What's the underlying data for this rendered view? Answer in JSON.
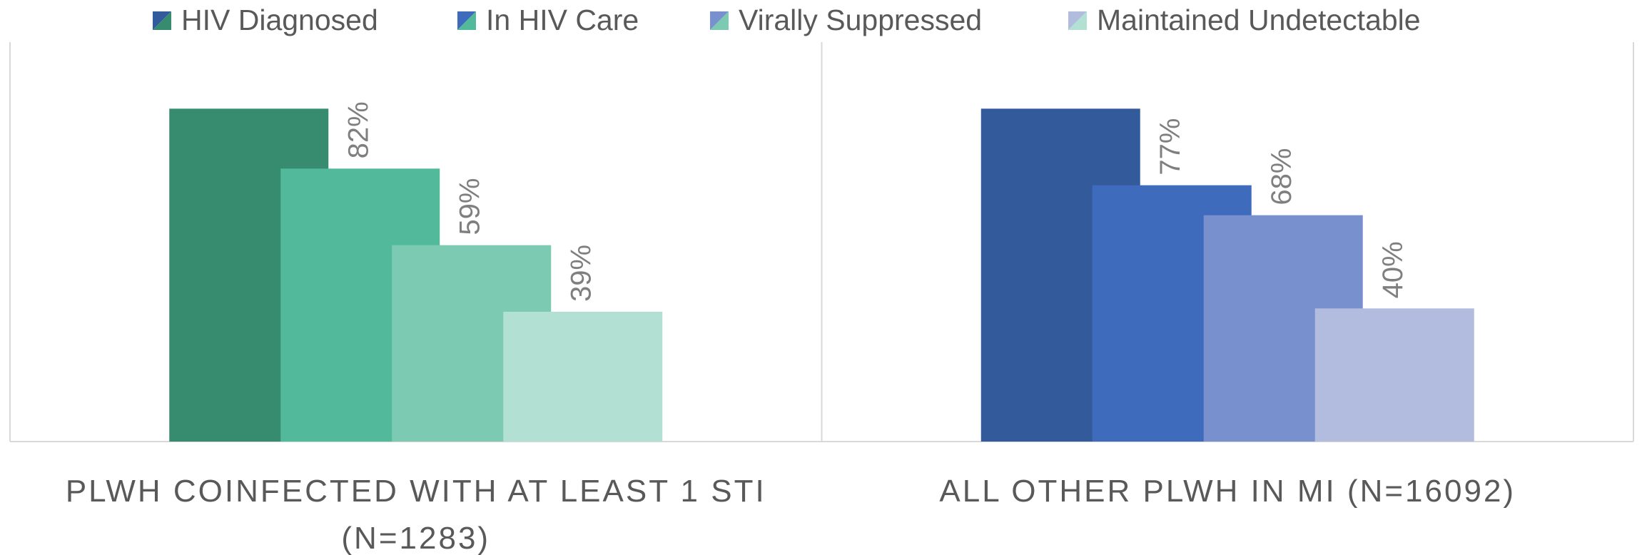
{
  "chart_data": {
    "type": "bar",
    "categories": [
      "PLWH COINFECTED WITH AT LEAST 1 STI (N=1283)",
      "ALL OTHER PLWH IN MI (N=16092)"
    ],
    "series": [
      {
        "name": "HIV Diagnosed",
        "colors": [
          "#378b6f",
          "#335a9b"
        ],
        "values": [
          100,
          100
        ]
      },
      {
        "name": "In HIV Care",
        "colors": [
          "#52b99b",
          "#3e6bbb"
        ],
        "values": [
          82,
          77
        ],
        "value_labels": [
          "82%",
          "77%"
        ]
      },
      {
        "name": "Virally Suppressed",
        "colors": [
          "#7ccab2",
          "#7990cf"
        ],
        "values": [
          59,
          68
        ],
        "value_labels": [
          "59%",
          "68%"
        ]
      },
      {
        "name": "Maintained Undetectable",
        "colors": [
          "#b2e0d3",
          "#b1bcdf"
        ],
        "values": [
          39,
          40
        ],
        "value_labels": [
          "39%",
          "40%"
        ]
      }
    ],
    "ylim": [
      0,
      120
    ],
    "legend": "top"
  }
}
